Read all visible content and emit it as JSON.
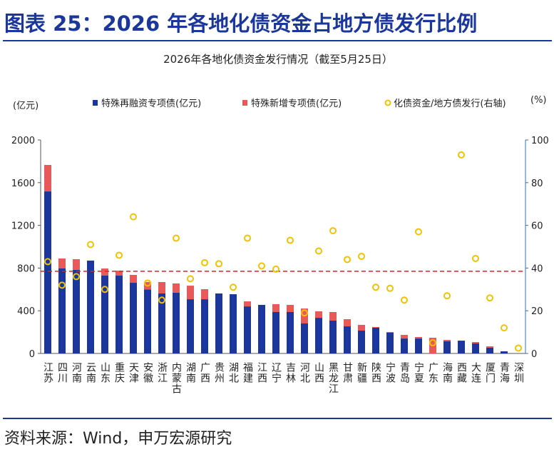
{
  "header": {
    "title": "图表 25：2026 年各地化债资金占地方债发行比例"
  },
  "chart_data": {
    "type": "bar-stacked-dual",
    "title": "2026年各地化债资金发行情况（截至5月25日）",
    "y_unit": "(亿元)",
    "y2_unit": "(%)",
    "categories": [
      "江苏",
      "四川",
      "河南",
      "云南",
      "山东",
      "重庆",
      "天津",
      "安徽",
      "浙江",
      "内蒙古",
      "湖南",
      "广西",
      "贵州",
      "湖北",
      "福建",
      "江西",
      "辽宁",
      "吉林",
      "河北",
      "山西",
      "黑龙江",
      "甘肃",
      "新疆",
      "陕西",
      "宁波",
      "青岛",
      "宁夏",
      "广东",
      "海南",
      "西藏",
      "大连",
      "厦门",
      "青海",
      "深圳"
    ],
    "series": [
      {
        "name": "特殊再融资专项债(亿元)",
        "color": "#1b379b",
        "kind": "bar",
        "values": [
          1518,
          796,
          783,
          870,
          729,
          729,
          662,
          600,
          562,
          569,
          508,
          508,
          562,
          555,
          441,
          455,
          388,
          388,
          281,
          334,
          308,
          254,
          214,
          241,
          194,
          140,
          140,
          0,
          114,
          120,
          94,
          54,
          20,
          0
        ]
      },
      {
        "name": "特殊新增专项债(亿元)",
        "color": "#e8595a",
        "kind": "bar",
        "values": [
          248,
          94,
          100,
          0,
          67,
          47,
          74,
          70,
          107,
          87,
          127,
          94,
          0,
          0,
          47,
          0,
          74,
          67,
          140,
          61,
          80,
          67,
          54,
          7,
          7,
          34,
          14,
          147,
          13,
          0,
          13,
          13,
          0,
          0
        ]
      },
      {
        "name": "化债资金/地方债发行(右轴)",
        "color": "#f2c200",
        "kind": "scatter",
        "axis": "y2",
        "values": [
          43,
          32,
          36,
          51,
          30,
          46,
          64,
          33,
          25,
          54,
          35,
          42.5,
          42,
          31,
          54,
          41,
          39.5,
          53,
          19,
          48,
          57.5,
          44,
          45.5,
          31,
          30.5,
          25,
          57,
          5,
          27,
          93,
          44.5,
          26,
          12,
          2.5
        ]
      }
    ],
    "reference_line": {
      "value": 38.5,
      "axis": "y2",
      "color": "#e02020"
    },
    "ylim": [
      0,
      2000
    ],
    "yticks": [
      0,
      400,
      800,
      1200,
      1600,
      2000
    ],
    "y2lim": [
      0,
      100
    ],
    "y2ticks": [
      0,
      20,
      40,
      60,
      80,
      100
    ]
  },
  "footer": {
    "source": "资料来源：Wind，申万宏源研究"
  }
}
